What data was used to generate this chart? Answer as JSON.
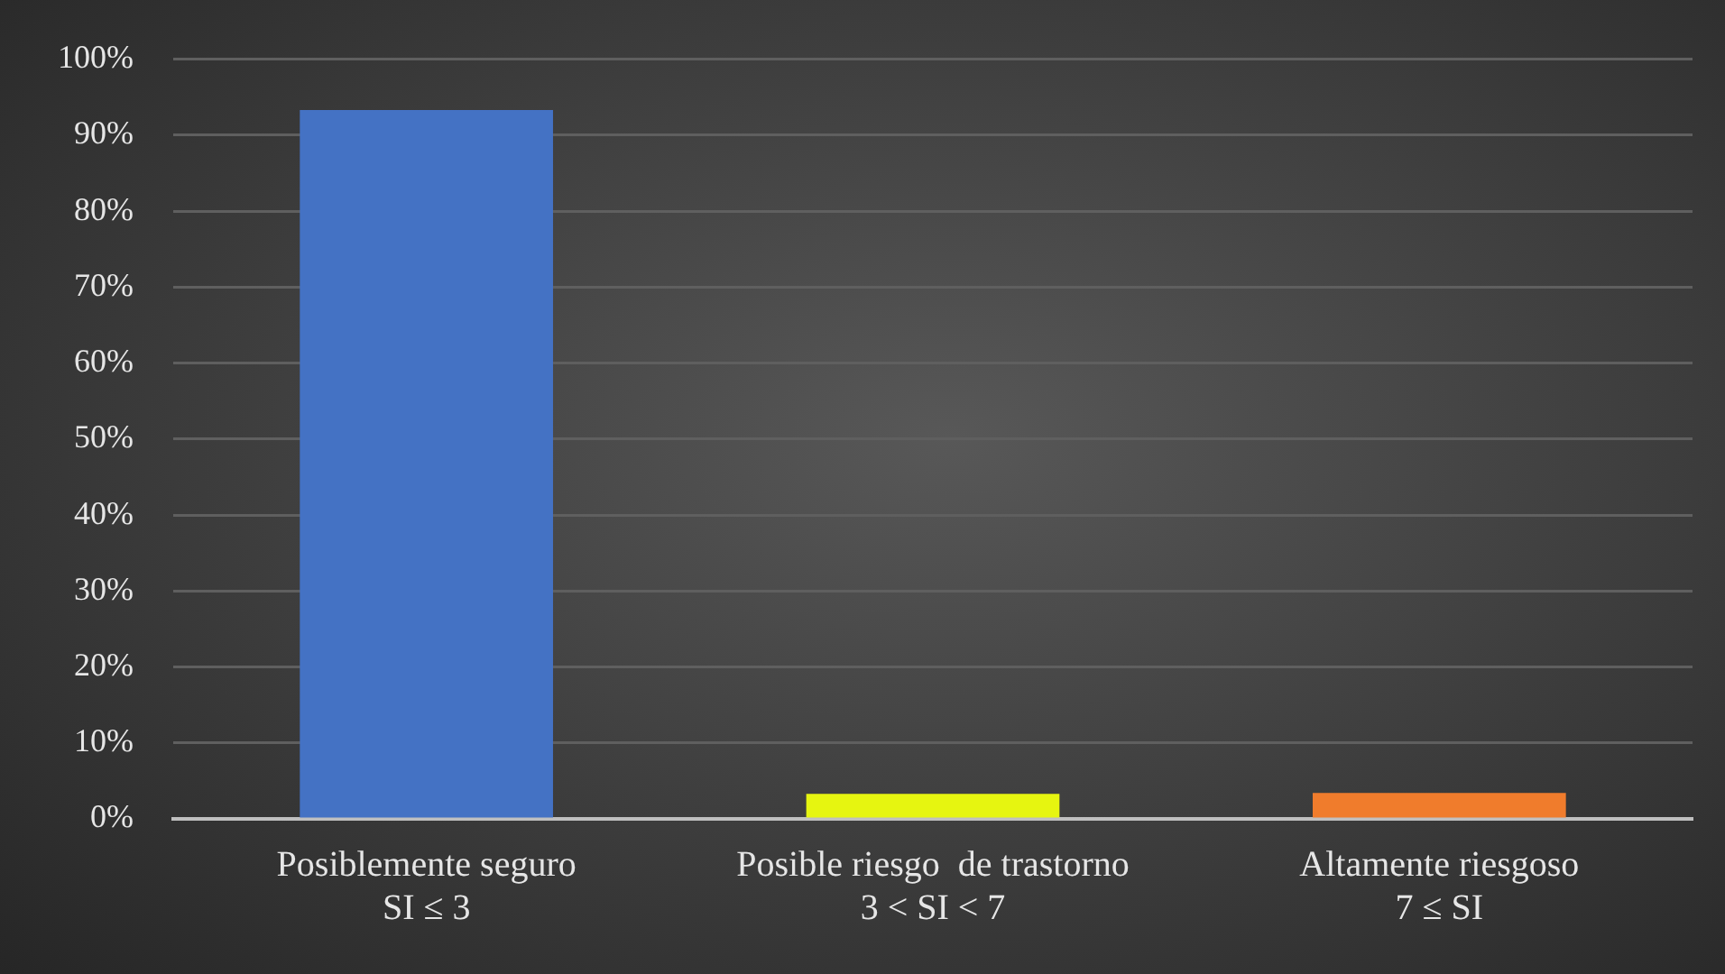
{
  "chart_data": {
    "type": "bar",
    "categories": [
      "Posiblemente seguro\nSI ≤ 3",
      "Posible riesgo  de trastorno\n3 < SI < 7",
      "Altamente riesgoso\n7 ≤ SI"
    ],
    "values": [
      93.3,
      3.3,
      3.4
    ],
    "colors": [
      "#4472c4",
      "#e6f510",
      "#f07c2c"
    ],
    "ylim": [
      0,
      100
    ],
    "yticks": [
      {
        "value": 0,
        "label": "0%"
      },
      {
        "value": 10,
        "label": "10%"
      },
      {
        "value": 20,
        "label": "20%"
      },
      {
        "value": 30,
        "label": "30%"
      },
      {
        "value": 40,
        "label": "40%"
      },
      {
        "value": 50,
        "label": "50%"
      },
      {
        "value": 60,
        "label": "60%"
      },
      {
        "value": 70,
        "label": "70%"
      },
      {
        "value": 80,
        "label": "80%"
      },
      {
        "value": 90,
        "label": "90%"
      },
      {
        "value": 100,
        "label": "100%"
      }
    ],
    "grid": "y"
  }
}
